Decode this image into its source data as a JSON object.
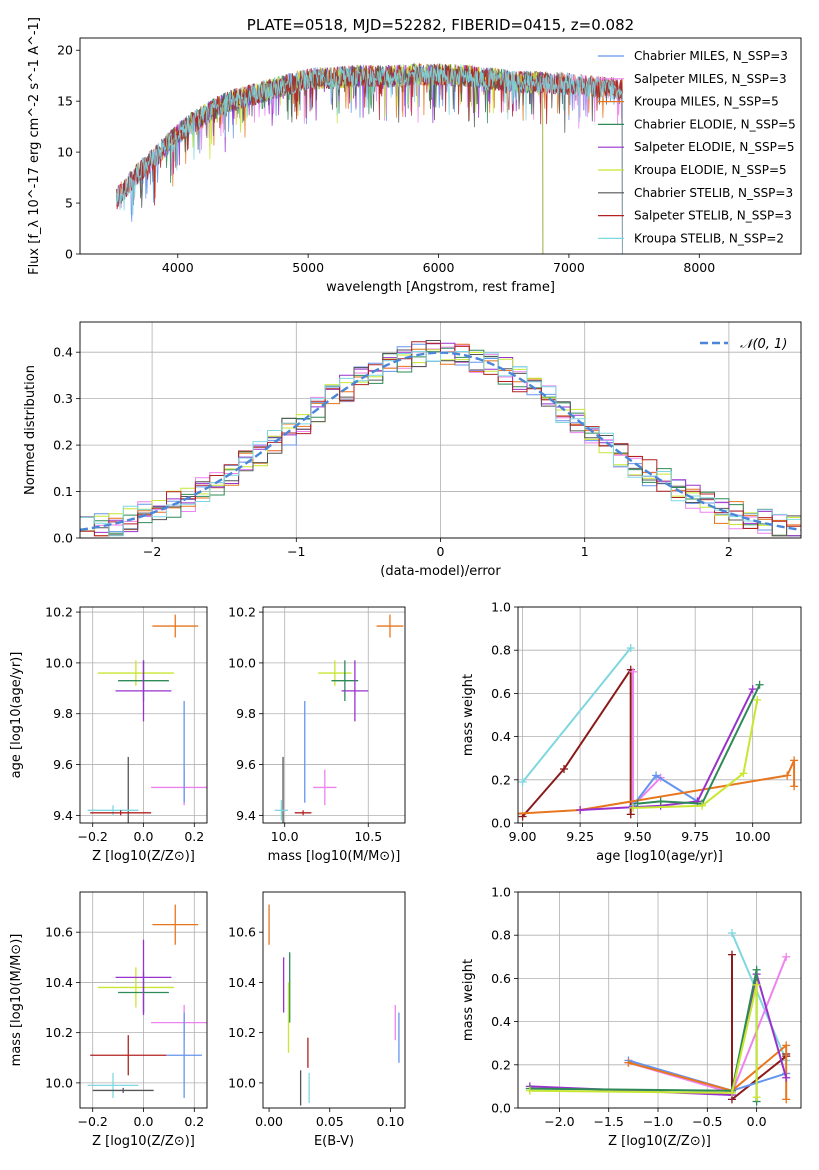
{
  "chart_data": [
    {
      "id": "spectrum",
      "type": "line",
      "title": "PLATE=0518, MJD=52282, FIBERID=0415, z=0.082",
      "xlabel": "wavelength [Angstrom, rest frame]",
      "ylabel": "Flux [f_λ 10^-17 erg cm^-2 s^-1 A^-1]",
      "xlim": [
        3250,
        8780
      ],
      "ylim": [
        0,
        21.2
      ],
      "xticks": [
        4000,
        5000,
        6000,
        7000,
        8000
      ],
      "yticks": [
        0,
        5,
        10,
        15,
        20
      ],
      "grid": false,
      "legend": "upper right",
      "continuum": {
        "x": [
          3530,
          3600,
          3700,
          3800,
          3900,
          4000,
          4100,
          4200,
          4300,
          4400,
          4500,
          4600,
          4800,
          5000,
          5200,
          5400,
          5600,
          5800,
          6000,
          6200,
          6400,
          6600,
          6800,
          7000,
          7200,
          7400
        ],
        "y": [
          5.5,
          6.5,
          8.0,
          9.2,
          10.5,
          11.8,
          12.8,
          13.6,
          14.4,
          15.0,
          15.4,
          15.7,
          16.5,
          17.2,
          17.3,
          17.5,
          17.4,
          17.6,
          17.6,
          17.5,
          17.2,
          16.9,
          16.8,
          16.7,
          16.4,
          16.2
        ]
      },
      "series": [
        {
          "name": "Chabrier MILES, N_SSP=3",
          "color": "#6495ed",
          "range": [
            3530,
            7410
          ]
        },
        {
          "name": "Salpeter MILES, N_SSP=3",
          "color": "#ee82ee",
          "range": [
            3530,
            7410
          ]
        },
        {
          "name": "Kroupa MILES, N_SSP=5",
          "color": "#e8761e",
          "range": [
            3530,
            7410
          ]
        },
        {
          "name": "Chabrier ELODIE, N_SSP=5",
          "color": "#2e8b57",
          "range": [
            3900,
            6800
          ]
        },
        {
          "name": "Salpeter ELODIE, N_SSP=5",
          "color": "#9932cc",
          "range": [
            3900,
            6800
          ]
        },
        {
          "name": "Kroupa ELODIE, N_SSP=5",
          "color": "#c8e632",
          "range": [
            3900,
            6800
          ]
        },
        {
          "name": "Chabrier STELIB, N_SSP=3",
          "color": "#555555",
          "range": [
            3530,
            7410
          ]
        },
        {
          "name": "Salpeter STELIB, N_SSP=3",
          "color": "#b22222",
          "range": [
            3530,
            7410
          ]
        },
        {
          "name": "Kroupa STELIB, N_SSP=2",
          "color": "#7fd7e0",
          "range": [
            3530,
            7410
          ]
        }
      ]
    },
    {
      "id": "hist",
      "type": "bar",
      "xlabel": "(data-model)/error",
      "ylabel": "Normed distribution",
      "xlim": [
        -2.5,
        2.5
      ],
      "ylim": [
        0,
        0.465
      ],
      "xticks": [
        -2,
        -1,
        0,
        1,
        2
      ],
      "yticks": [
        0.0,
        0.1,
        0.2,
        0.3,
        0.4
      ],
      "grid": true,
      "legend": "upper right",
      "reference": {
        "name": "𝒩(0, 1)",
        "mean": 0,
        "sigma": 1,
        "color": "#4a86d8"
      },
      "bins": {
        "start": -2.5,
        "width": 0.1,
        "count": 50
      },
      "series_colors": [
        "#6495ed",
        "#ee82ee",
        "#e8761e",
        "#2e8b57",
        "#9932cc",
        "#c8e632",
        "#555555",
        "#b22222",
        "#7fd7e0"
      ]
    },
    {
      "id": "age-z",
      "type": "scatter",
      "xlabel": "Z [log10(Z/Z⊙)]",
      "ylabel": "age [log10(age/yr)]",
      "xlim": [
        -0.25,
        0.25
      ],
      "ylim": [
        9.37,
        10.22
      ],
      "xticks": [
        -0.2,
        0.0,
        0.2
      ],
      "yticks": [
        9.4,
        9.6,
        9.8,
        10.0,
        10.2
      ],
      "grid": true,
      "points": [
        {
          "x": 0.125,
          "y": 10.145,
          "xerr": 0.09,
          "yerr": 0.045,
          "color": "#e8761e"
        },
        {
          "x": -0.03,
          "y": 9.96,
          "xerr": 0.15,
          "yerr": 0.05,
          "color": "#c8e632"
        },
        {
          "x": 0.0,
          "y": 9.93,
          "xerr": 0.1,
          "yerr": 0.08,
          "color": "#2e8b57"
        },
        {
          "x": 0.0,
          "y": 9.89,
          "xerr": 0.11,
          "yerr": 0.12,
          "color": "#9932cc"
        },
        {
          "x": 0.16,
          "y": 9.51,
          "xerr": 0.13,
          "yerr": 0.07,
          "color": "#ee82ee"
        },
        {
          "x": 0.16,
          "y": 9.65,
          "xerr": 0.0,
          "yerr": 0.2,
          "color": "#6495ed"
        },
        {
          "x": -0.06,
          "y": 9.5,
          "xerr": 0.0,
          "yerr": 0.13,
          "color": "#555555"
        },
        {
          "x": -0.12,
          "y": 9.42,
          "xerr": 0.1,
          "yerr": 0.02,
          "color": "#7fd7e0"
        },
        {
          "x": -0.09,
          "y": 9.41,
          "xerr": 0.12,
          "yerr": 0.01,
          "color": "#b22222"
        }
      ]
    },
    {
      "id": "age-mass",
      "type": "scatter",
      "xlabel": "mass [log10(M/M⊙)]",
      "ylabel": "",
      "xlim": [
        9.87,
        10.72
      ],
      "ylim": [
        9.37,
        10.22
      ],
      "xticks": [
        10.0,
        10.5
      ],
      "yticks": [
        9.4,
        9.6,
        9.8,
        10.0,
        10.2
      ],
      "grid": true,
      "points": [
        {
          "x": 10.63,
          "y": 10.145,
          "xerr": 0.08,
          "yerr": 0.045,
          "color": "#e8761e"
        },
        {
          "x": 10.3,
          "y": 9.96,
          "xerr": 0.1,
          "yerr": 0.05,
          "color": "#c8e632"
        },
        {
          "x": 10.36,
          "y": 9.93,
          "xerr": 0.08,
          "yerr": 0.08,
          "color": "#2e8b57"
        },
        {
          "x": 10.42,
          "y": 9.89,
          "xerr": 0.08,
          "yerr": 0.12,
          "color": "#9932cc"
        },
        {
          "x": 10.24,
          "y": 9.51,
          "xerr": 0.07,
          "yerr": 0.07,
          "color": "#ee82ee"
        },
        {
          "x": 10.12,
          "y": 9.65,
          "xerr": 0.0,
          "yerr": 0.2,
          "color": "#6495ed"
        },
        {
          "x": 9.99,
          "y": 9.5,
          "xerr": 0.0,
          "yerr": 0.13,
          "color": "#555555"
        },
        {
          "x": 9.98,
          "y": 9.42,
          "xerr": 0.04,
          "yerr": 0.04,
          "color": "#7fd7e0"
        },
        {
          "x": 10.11,
          "y": 9.41,
          "xerr": 0.05,
          "yerr": 0.01,
          "color": "#b22222"
        }
      ]
    },
    {
      "id": "weight-age",
      "type": "line",
      "xlabel": "age [log10(age/yr)]",
      "ylabel": "mass weight",
      "xlim": [
        8.98,
        10.21
      ],
      "ylim": [
        0,
        1.0
      ],
      "xticks": [
        9.0,
        9.25,
        9.5,
        9.75,
        10.0
      ],
      "yticks": [
        0.0,
        0.2,
        0.4,
        0.6,
        0.8,
        1.0
      ],
      "grid": true,
      "series": [
        {
          "color": "#7fd7e0",
          "x": [
            9.0,
            9.47
          ],
          "y": [
            0.19,
            0.81
          ]
        },
        {
          "color": "#8b1a1a",
          "x": [
            9.0,
            9.18,
            9.47,
            9.47
          ],
          "y": [
            0.03,
            0.25,
            0.71,
            0.04
          ]
        },
        {
          "color": "#ee82ee",
          "x": [
            9.48,
            9.48,
            9.6
          ],
          "y": [
            0.7,
            0.08,
            0.21
          ]
        },
        {
          "color": "#6495ed",
          "x": [
            9.48,
            9.58,
            9.76
          ],
          "y": [
            0.08,
            0.22,
            0.1
          ]
        },
        {
          "color": "#e8761e",
          "x": [
            8.92,
            9.25,
            10.15,
            10.18,
            10.18
          ],
          "y": [
            0.04,
            0.06,
            0.22,
            0.29,
            0.17
          ]
        },
        {
          "color": "#9932cc",
          "x": [
            9.25,
            9.6,
            9.76,
            10.0
          ],
          "y": [
            0.06,
            0.08,
            0.1,
            0.62
          ]
        },
        {
          "color": "#2e8b57",
          "x": [
            9.5,
            9.6,
            9.78,
            10.03
          ],
          "y": [
            0.09,
            0.1,
            0.09,
            0.64
          ]
        },
        {
          "color": "#c8e632",
          "x": [
            9.48,
            9.78,
            9.96,
            10.02
          ],
          "y": [
            0.07,
            0.08,
            0.23,
            0.57
          ]
        }
      ]
    },
    {
      "id": "mass-z",
      "type": "scatter",
      "xlabel": "Z [log10(Z/Z⊙)]",
      "ylabel": "mass [log10(M/M⊙)]",
      "xlim": [
        -0.25,
        0.25
      ],
      "ylim": [
        9.9,
        10.76
      ],
      "xticks": [
        -0.2,
        0.0,
        0.2
      ],
      "yticks": [
        10.0,
        10.2,
        10.4,
        10.6
      ],
      "grid": true,
      "points": [
        {
          "x": 0.125,
          "y": 10.63,
          "xerr": 0.09,
          "yerr": 0.08,
          "color": "#e8761e"
        },
        {
          "x": -0.03,
          "y": 10.38,
          "xerr": 0.15,
          "yerr": 0.08,
          "color": "#c8e632"
        },
        {
          "x": 0.0,
          "y": 10.36,
          "xerr": 0.1,
          "yerr": 0.08,
          "color": "#2e8b57"
        },
        {
          "x": 0.0,
          "y": 10.42,
          "xerr": 0.11,
          "yerr": 0.15,
          "color": "#9932cc"
        },
        {
          "x": 0.16,
          "y": 10.24,
          "xerr": 0.13,
          "yerr": 0.07,
          "color": "#ee82ee"
        },
        {
          "x": 0.16,
          "y": 10.11,
          "xerr": 0.07,
          "yerr": 0.17,
          "color": "#6495ed"
        },
        {
          "x": -0.06,
          "y": 10.11,
          "xerr": 0.15,
          "yerr": 0.08,
          "color": "#b22222"
        },
        {
          "x": -0.12,
          "y": 9.99,
          "xerr": 0.1,
          "yerr": 0.05,
          "color": "#7fd7e0"
        },
        {
          "x": -0.08,
          "y": 9.97,
          "xerr": 0.12,
          "yerr": 0.01,
          "color": "#555555"
        }
      ]
    },
    {
      "id": "mass-ebv",
      "type": "scatter",
      "xlabel": "E(B-V)",
      "ylabel": "",
      "xlim": [
        -0.005,
        0.112
      ],
      "ylim": [
        9.9,
        10.76
      ],
      "xticks": [
        0.0,
        0.05,
        0.1
      ],
      "xticklabels": [
        "0.00",
        "0.05",
        "0.10"
      ],
      "yticks": [
        10.0,
        10.2,
        10.4,
        10.6
      ],
      "grid": false,
      "points": [
        {
          "x": 0.0,
          "y": 10.63,
          "xerr": 0.0,
          "yerr": 0.08,
          "color": "#e8761e"
        },
        {
          "x": 0.012,
          "y": 10.39,
          "xerr": 0.0,
          "yerr": 0.11,
          "color": "#9932cc"
        },
        {
          "x": 0.017,
          "y": 10.38,
          "xerr": 0.0,
          "yerr": 0.14,
          "color": "#2e8b57"
        },
        {
          "x": 0.016,
          "y": 10.26,
          "xerr": 0.0,
          "yerr": 0.14,
          "color": "#c8e632"
        },
        {
          "x": 0.032,
          "y": 10.12,
          "xerr": 0.0,
          "yerr": 0.06,
          "color": "#b22222"
        },
        {
          "x": 0.033,
          "y": 9.98,
          "xerr": 0.0,
          "yerr": 0.06,
          "color": "#7fd7e0"
        },
        {
          "x": 0.026,
          "y": 9.98,
          "xerr": 0.0,
          "yerr": 0.07,
          "color": "#555555"
        },
        {
          "x": 0.104,
          "y": 10.24,
          "xerr": 0.0,
          "yerr": 0.07,
          "color": "#ee82ee"
        },
        {
          "x": 0.107,
          "y": 10.18,
          "xerr": 0.0,
          "yerr": 0.1,
          "color": "#6495ed"
        }
      ]
    },
    {
      "id": "weight-z",
      "type": "line",
      "xlabel": "Z [log10(Z/Z⊙)]",
      "ylabel": "mass weight",
      "xlim": [
        -2.42,
        0.45
      ],
      "ylim": [
        0,
        1.0
      ],
      "xticks": [
        -2.0,
        -1.5,
        -1.0,
        -0.5,
        0.0
      ],
      "yticks": [
        0.0,
        0.2,
        0.4,
        0.6,
        0.8,
        1.0
      ],
      "grid": true,
      "series": [
        {
          "color": "#7fd7e0",
          "x": [
            -0.25,
            0.3
          ],
          "y": [
            0.81,
            0.22
          ]
        },
        {
          "color": "#8b1a1a",
          "x": [
            -0.25,
            -0.25,
            0.3,
            0.3
          ],
          "y": [
            0.71,
            0.04,
            0.24,
            0.25
          ]
        },
        {
          "color": "#ee82ee",
          "x": [
            -1.3,
            -0.25,
            0.3
          ],
          "y": [
            0.21,
            0.07,
            0.7
          ]
        },
        {
          "color": "#6495ed",
          "x": [
            -1.3,
            -0.25,
            0.3
          ],
          "y": [
            0.22,
            0.08,
            0.16
          ]
        },
        {
          "color": "#e8761e",
          "x": [
            -1.3,
            -0.25,
            0.3,
            0.3
          ],
          "y": [
            0.21,
            0.08,
            0.29,
            0.04
          ]
        },
        {
          "color": "#9932cc",
          "x": [
            -2.3,
            -0.25,
            0.0,
            0.3
          ],
          "y": [
            0.1,
            0.06,
            0.62,
            0.14
          ]
        },
        {
          "color": "#2e8b57",
          "x": [
            -2.3,
            -0.25,
            0.0,
            0.0
          ],
          "y": [
            0.09,
            0.08,
            0.64,
            0.03
          ]
        },
        {
          "color": "#c8e632",
          "x": [
            -2.3,
            -0.25,
            0.0,
            0.0
          ],
          "y": [
            0.08,
            0.07,
            0.57,
            0.05
          ]
        }
      ]
    }
  ]
}
